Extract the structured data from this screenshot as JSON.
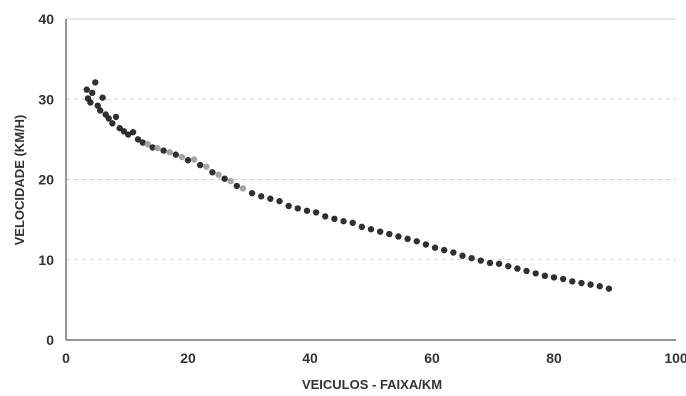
{
  "chart_data": {
    "type": "scatter",
    "title": "",
    "xlabel": "VEICULOS - FAIXA/KM",
    "ylabel": "VELOCIDADE (KM/H)",
    "xlim": [
      0,
      100
    ],
    "ylim": [
      0,
      40
    ],
    "x_ticks": [
      0,
      20,
      40,
      60,
      80,
      100
    ],
    "y_ticks": [
      0,
      10,
      20,
      30,
      40
    ],
    "grid": "horizontal dashed",
    "legend": "none",
    "colors": {
      "points_dark": "#1a1a1a",
      "points_light": "#9a9a9a",
      "grid": "#cfcfcf",
      "axis": "#555555",
      "text": "#333333"
    },
    "series": [
      {
        "points": [
          [
            3.4,
            31.2
          ],
          [
            3.6,
            30.1
          ],
          [
            4.0,
            29.6
          ],
          [
            4.3,
            30.8
          ],
          [
            4.8,
            32.1
          ],
          [
            5.2,
            29.2
          ],
          [
            5.6,
            28.6
          ],
          [
            6.0,
            30.2
          ],
          [
            6.5,
            28.1
          ],
          [
            7.0,
            27.6
          ],
          [
            7.6,
            27.0
          ],
          [
            8.2,
            27.8
          ],
          [
            8.8,
            26.4
          ],
          [
            9.5,
            26.0
          ],
          [
            10.2,
            25.6
          ],
          [
            11.0,
            25.9
          ],
          [
            11.8,
            25.0
          ],
          [
            12.6,
            24.6
          ],
          [
            13.4,
            24.4
          ],
          [
            14.2,
            24.0
          ],
          [
            15.0,
            23.9
          ],
          [
            16.0,
            23.6
          ],
          [
            17.0,
            23.4
          ],
          [
            18.0,
            23.1
          ],
          [
            19.0,
            22.8
          ],
          [
            20.0,
            22.4
          ],
          [
            21.0,
            22.5
          ],
          [
            22.0,
            21.8
          ],
          [
            23.0,
            21.6
          ],
          [
            24.0,
            20.9
          ],
          [
            25.0,
            20.6
          ],
          [
            26.0,
            20.1
          ],
          [
            27.0,
            19.8
          ],
          [
            28.0,
            19.2
          ],
          [
            29.0,
            18.9
          ],
          [
            30.5,
            18.3
          ],
          [
            32.0,
            17.9
          ],
          [
            33.5,
            17.6
          ],
          [
            35.0,
            17.3
          ],
          [
            36.5,
            16.7
          ],
          [
            38.0,
            16.4
          ],
          [
            39.5,
            16.1
          ],
          [
            41.0,
            15.9
          ],
          [
            42.5,
            15.4
          ],
          [
            44.0,
            15.1
          ],
          [
            45.5,
            14.8
          ],
          [
            47.0,
            14.6
          ],
          [
            48.5,
            14.1
          ],
          [
            50.0,
            13.8
          ],
          [
            51.5,
            13.5
          ],
          [
            53.0,
            13.2
          ],
          [
            54.5,
            12.9
          ],
          [
            56.0,
            12.6
          ],
          [
            57.5,
            12.3
          ],
          [
            59.0,
            11.9
          ],
          [
            60.5,
            11.5
          ],
          [
            62.0,
            11.2
          ],
          [
            63.5,
            10.9
          ],
          [
            65.0,
            10.5
          ],
          [
            66.5,
            10.2
          ],
          [
            68.0,
            9.9
          ],
          [
            69.5,
            9.6
          ],
          [
            71.0,
            9.5
          ],
          [
            72.5,
            9.2
          ],
          [
            74.0,
            8.9
          ],
          [
            75.5,
            8.6
          ],
          [
            77.0,
            8.3
          ],
          [
            78.5,
            8.0
          ],
          [
            80.0,
            7.8
          ],
          [
            81.5,
            7.6
          ],
          [
            83.0,
            7.3
          ],
          [
            84.5,
            7.1
          ],
          [
            86.0,
            6.9
          ],
          [
            87.5,
            6.7
          ],
          [
            89.0,
            6.4
          ]
        ]
      }
    ]
  }
}
